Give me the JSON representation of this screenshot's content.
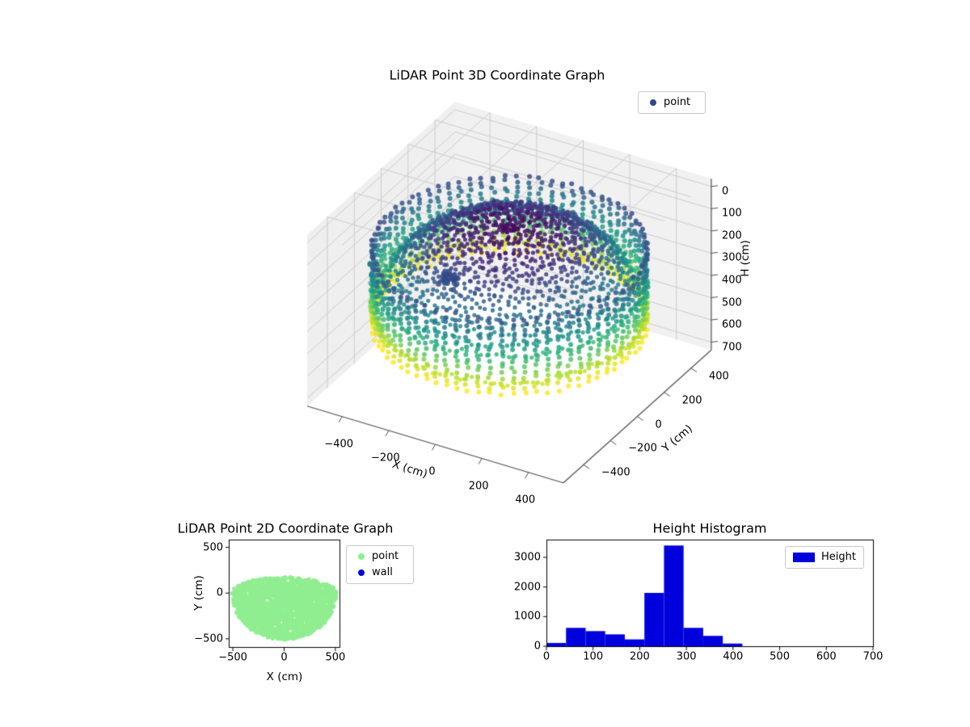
{
  "figure": {
    "background": "#ffffff"
  },
  "chart_data": [
    {
      "id": "lidar-3d",
      "type": "scatter3d",
      "title": "LiDAR Point 3D Coordinate Graph",
      "xlabel": "X (cm)",
      "ylabel": "Y (cm)",
      "zlabel": "H (cm)",
      "xlim": [
        -500,
        500
      ],
      "ylim": [
        -500,
        500
      ],
      "zlim": [
        0,
        700
      ],
      "z_axis_inverted": true,
      "xticks": [
        -400,
        -200,
        0,
        200,
        400
      ],
      "yticks": [
        -400,
        -200,
        0,
        200,
        400
      ],
      "zticks": [
        0,
        100,
        200,
        300,
        400,
        500,
        600,
        700
      ],
      "colormap": "viridis",
      "grid": true,
      "legend": [
        {
          "label": "point",
          "color": "#2e4a89"
        }
      ],
      "point_cloud": {
        "description": "dome-shaped LiDAR scan, points colored by height H (viridis: dark at top ~60cm, yellow at rim ~450cm)",
        "dome": {
          "radius_cm": 500,
          "rings": 26,
          "z_top_cm": 60,
          "z_rim_cm": 440
        },
        "rim_columns": {
          "count": 74,
          "radius_cm": 512,
          "z_range_cm": [
            150,
            500
          ]
        },
        "cluster": {
          "center": [
            -320,
            120,
            455
          ],
          "count": 28,
          "color": "#2e4a89"
        }
      }
    },
    {
      "id": "lidar-2d",
      "type": "scatter",
      "title": "LiDAR Point 2D Coordinate Graph",
      "xlabel": "X (cm)",
      "ylabel": "Y (cm)",
      "xlim": [
        -540,
        540
      ],
      "ylim": [
        -590,
        585
      ],
      "xticks": [
        -500,
        0,
        500
      ],
      "yticks": [
        500,
        0,
        -500
      ],
      "legend": [
        {
          "label": "point",
          "color": "#90ee90"
        },
        {
          "label": "wall",
          "color": "#0000dd"
        }
      ],
      "blob": {
        "center": [
          0,
          0
        ],
        "radius_cm": 510,
        "top_cut_ratio": 0.34,
        "points": 2600
      }
    },
    {
      "id": "height-histogram",
      "type": "bar",
      "title": "Height Histogram",
      "xlim": [
        0,
        700
      ],
      "ylim": [
        0,
        3600
      ],
      "xticks": [
        0,
        100,
        200,
        300,
        400,
        500,
        600,
        700
      ],
      "yticks": [
        0,
        1000,
        2000,
        3000
      ],
      "legend": [
        {
          "label": "Height",
          "color": "#0000dd"
        }
      ],
      "bin_edges": [
        0,
        42,
        84,
        126,
        168,
        210,
        252,
        294,
        336,
        378,
        420
      ],
      "values": [
        110,
        620,
        510,
        400,
        230,
        1800,
        3400,
        620,
        350,
        90
      ]
    }
  ]
}
